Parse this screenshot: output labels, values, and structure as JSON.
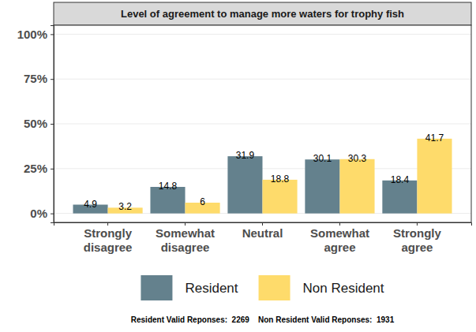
{
  "chart_data": {
    "type": "bar",
    "title": "Level of agreement to manage more waters for trophy fish",
    "categories": [
      "Strongly disagree",
      "Somewhat disagree",
      "Neutral",
      "Somewhat agree",
      "Strongly agree"
    ],
    "series": [
      {
        "name": "Resident",
        "color": "#64818d",
        "values": [
          4.9,
          14.8,
          31.9,
          30.1,
          18.4
        ]
      },
      {
        "name": "Non Resident",
        "color": "#fedb6b",
        "values": [
          3.2,
          6,
          18.8,
          30.3,
          41.7
        ]
      }
    ],
    "ylim": [
      -5,
      105
    ],
    "yticks": [
      {
        "value": 0,
        "label": "0%"
      },
      {
        "value": 25,
        "label": "25%"
      },
      {
        "value": 50,
        "label": "50%"
      },
      {
        "value": 75,
        "label": "75%"
      },
      {
        "value": 100,
        "label": "100%"
      }
    ],
    "grid": true,
    "data_labels": true,
    "legend": "bottom",
    "annotations": [
      "Resident Valid Reponses:  2269    Non Resident Valid Reponses:  1931"
    ]
  }
}
